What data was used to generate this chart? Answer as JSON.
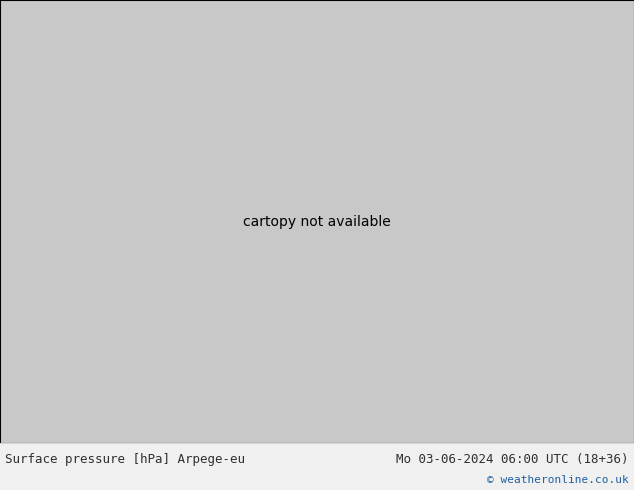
{
  "title_left": "Surface pressure [hPa] Arpege-eu",
  "title_right": "Mo 03-06-2024 06:00 UTC (18+36)",
  "copyright": "© weatheronline.co.uk",
  "footer_text_color": "#303030",
  "copyright_color": "#2060a0",
  "figsize": [
    6.34,
    4.9
  ],
  "dpi": 100,
  "ocean_color": "#c8c8c8",
  "land_color": "#d4d0a0",
  "green_fill": "#b8e8a0",
  "white_area": "#f0f0f0",
  "red_color": "#cc0000",
  "blue_color": "#0000cc",
  "black_color": "#000000",
  "footer_bg": "#f0f0f0",
  "map_extent": [
    -55,
    50,
    25,
    75
  ]
}
